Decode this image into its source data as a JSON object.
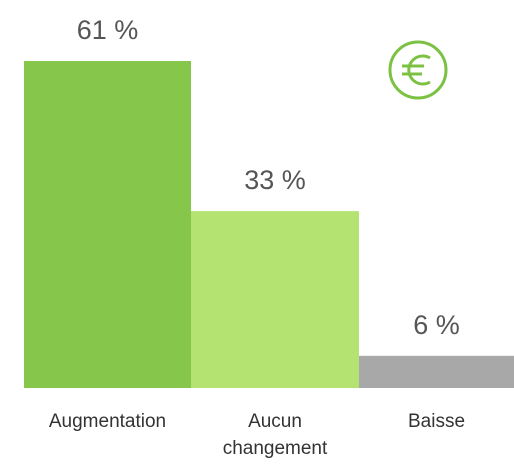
{
  "chart_data": {
    "type": "bar",
    "categories": [
      "Augmentation",
      "Aucun changement",
      "Baisse"
    ],
    "values": [
      61,
      33,
      6
    ],
    "value_labels": [
      "61 %",
      "33 %",
      "6 %"
    ],
    "colors": [
      "#86c64b",
      "#b5e371",
      "#a8a8a8"
    ]
  }
}
